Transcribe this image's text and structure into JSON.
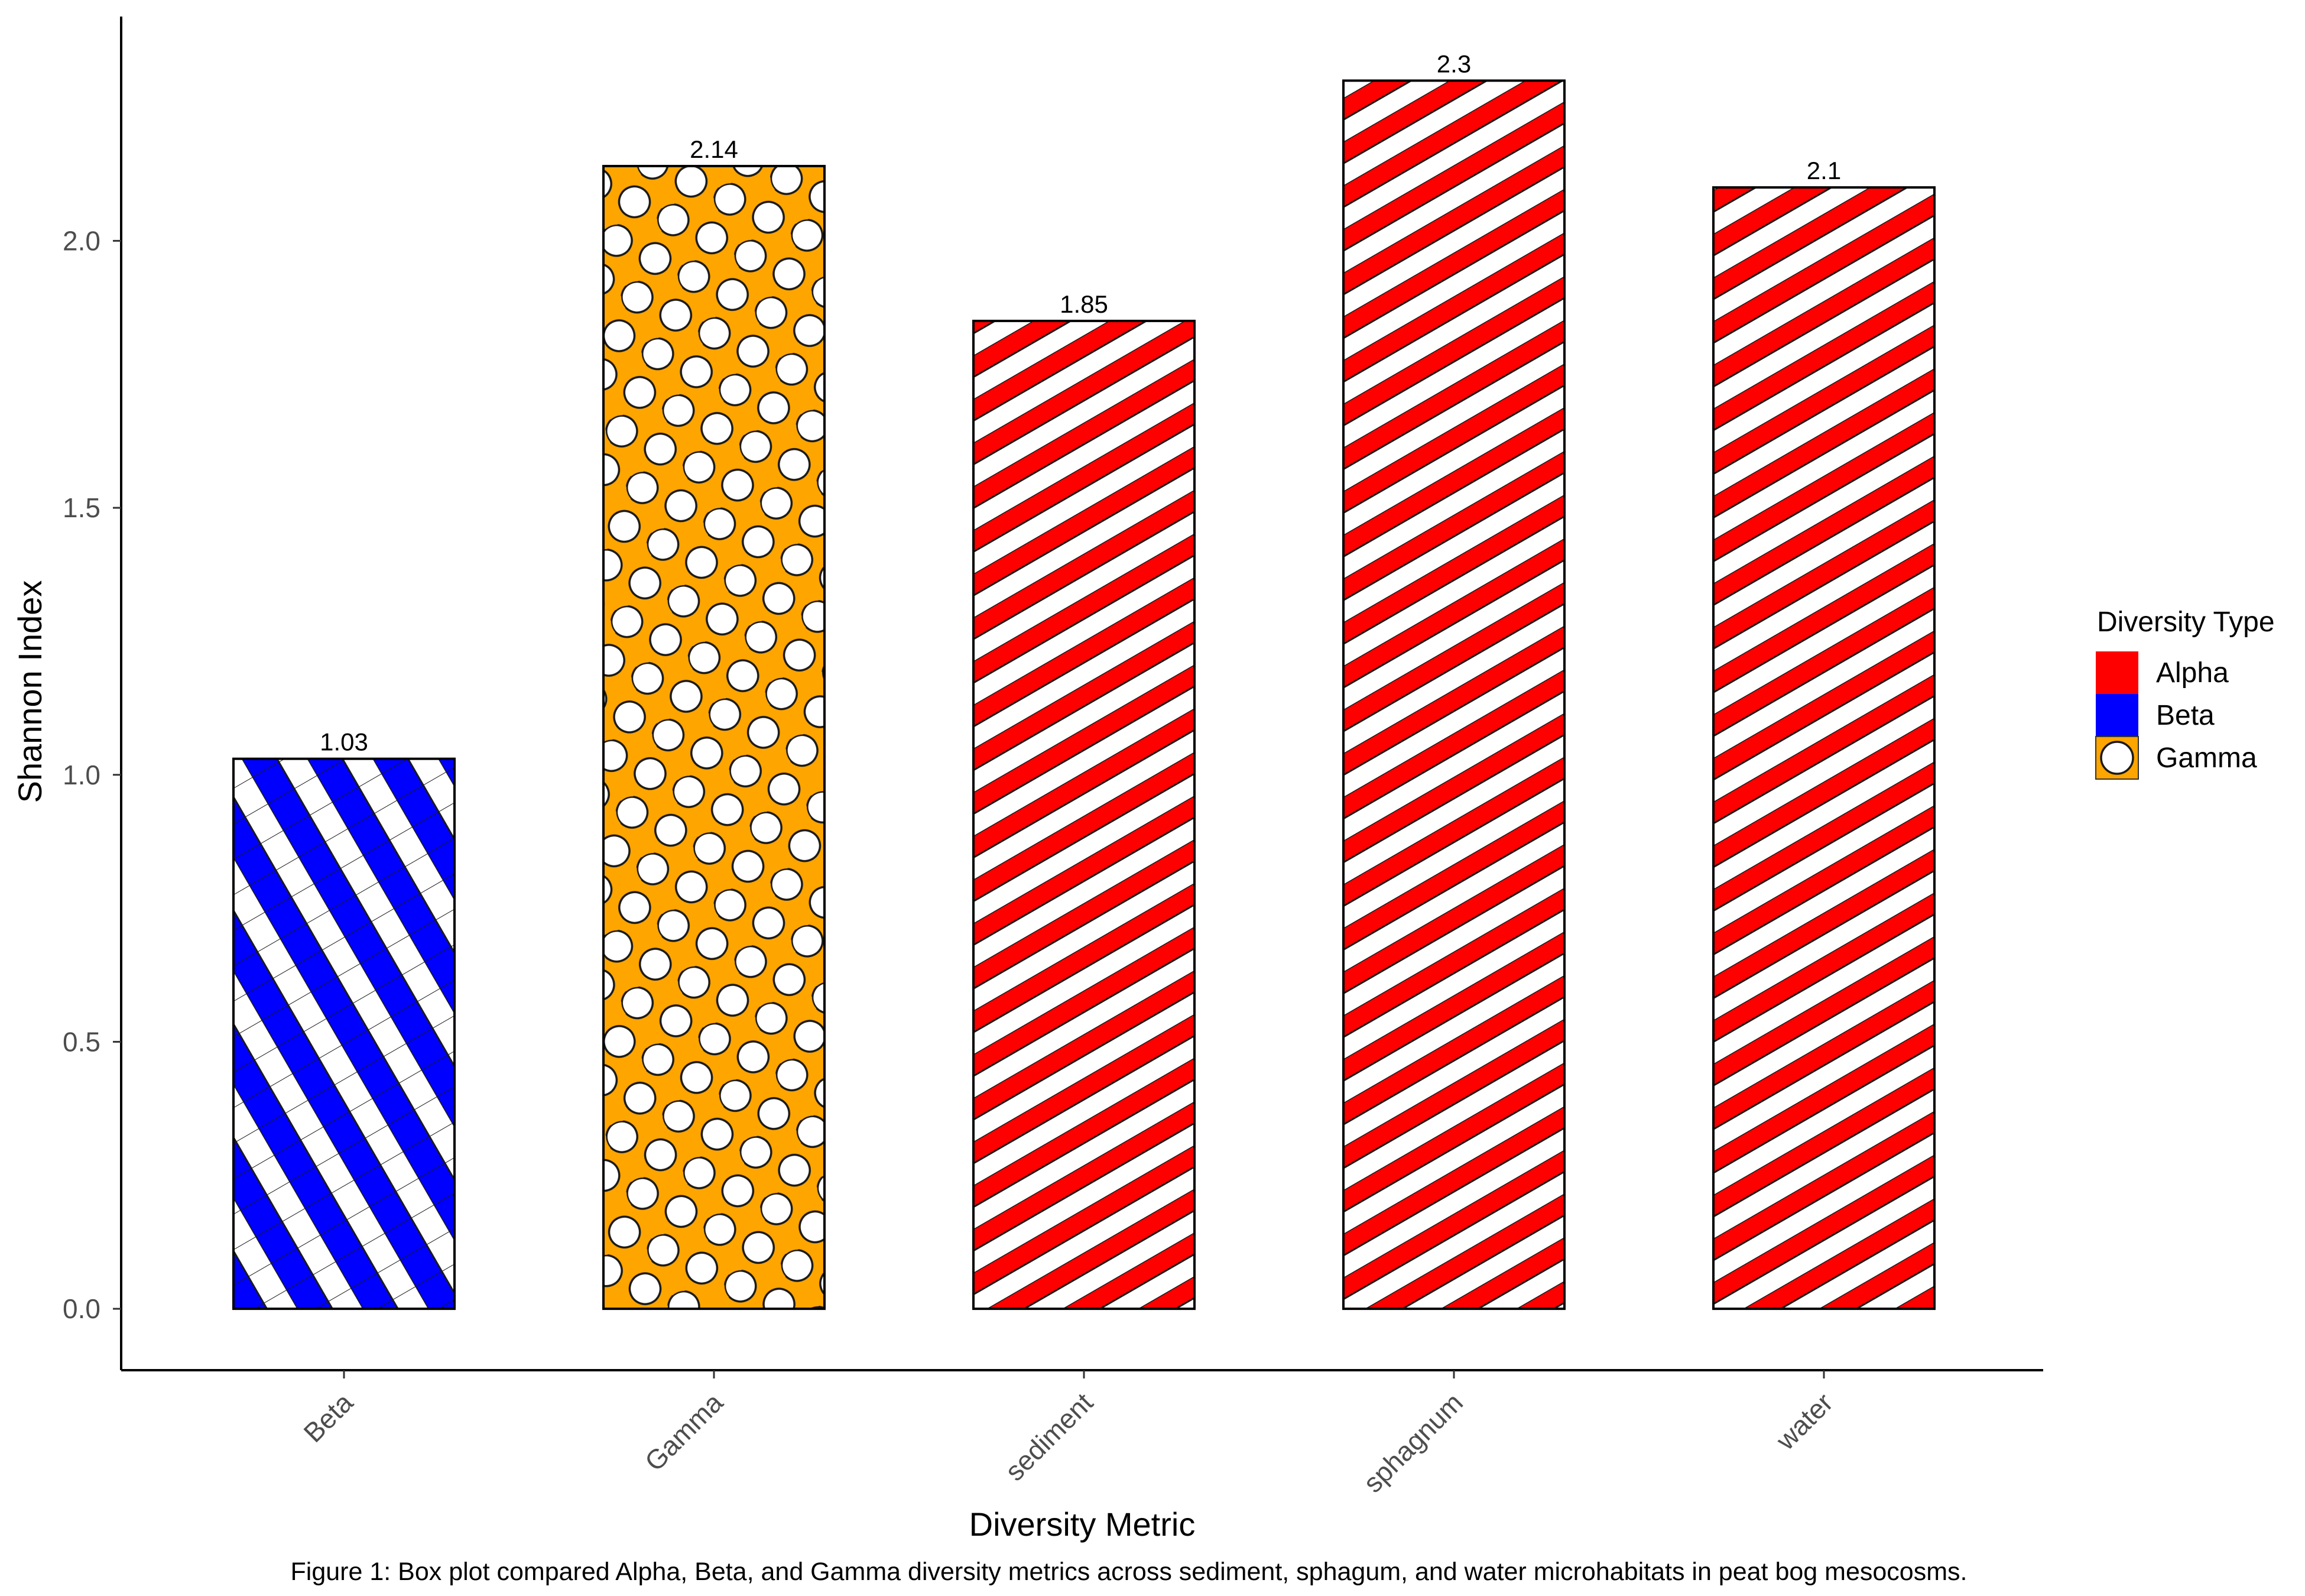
{
  "chart_data": {
    "type": "bar",
    "categories": [
      "Beta",
      "Gamma",
      "sediment",
      "sphagnum",
      "water"
    ],
    "values": [
      1.03,
      2.14,
      1.85,
      2.3,
      2.1
    ],
    "value_labels": [
      "1.03",
      "2.14",
      "1.85",
      "2.3",
      "2.1"
    ],
    "bar_types": [
      "Beta",
      "Gamma",
      "Alpha",
      "Alpha",
      "Alpha"
    ],
    "xlabel": "Diversity Metric",
    "ylabel": "Shannon Index",
    "ylim": [
      -0.115,
      2.42
    ],
    "yticks": [
      0.0,
      0.5,
      1.0,
      1.5,
      2.0
    ],
    "ytick_labels": [
      "0.0",
      "0.5",
      "1.0",
      "1.5",
      "2.0"
    ],
    "grid": false,
    "legend": {
      "title": "Diversity Type",
      "placement": "right",
      "entries": [
        {
          "label": "Alpha",
          "color": "#ff0000",
          "pattern": "stripe"
        },
        {
          "label": "Beta",
          "color": "#0000ff",
          "pattern": "crosshatch"
        },
        {
          "label": "Gamma",
          "color": "#ffa500",
          "pattern": "circle"
        }
      ]
    },
    "caption": "Figure 1: Box plot compared Alpha, Beta, and Gamma diversity metrics across sediment, sphagum, and water microhabitats in peat bog mesocosms."
  }
}
